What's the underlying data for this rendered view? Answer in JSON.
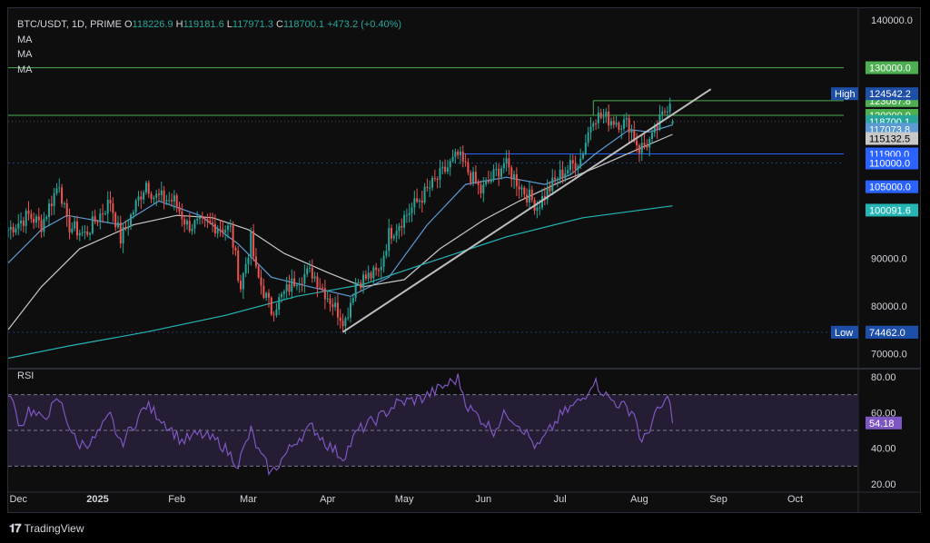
{
  "header": {
    "symbol": "BTC/USDT, 1D, PRIME",
    "open_label": "O",
    "open": "118226.9",
    "high_label": "H",
    "high": "119181.6",
    "low_label": "L",
    "low": "117971.3",
    "close_label": "C",
    "close": "118700.1",
    "change": "+473.2 (+0.40%)",
    "ma_labels": [
      "MA",
      "MA",
      "MA"
    ]
  },
  "footer": {
    "brand": "TradingView"
  },
  "colors": {
    "up": "#26a69a",
    "down": "#ef5350",
    "ma_fast": "#5b9bd5",
    "ma_mid": "#c8c8c8",
    "ma_slow": "#26b5b5",
    "rsi": "#7e57c2",
    "resistance": "#4caf50",
    "support": "#2962ff",
    "trendline": "#bdbdbd"
  },
  "chart_data": [
    {
      "type": "candlestick",
      "title": "BTC/USDT, 1D, PRIME",
      "x_ticks": [
        "Dec",
        "2025",
        "Feb",
        "Mar",
        "Apr",
        "May",
        "Jun",
        "Jul",
        "Aug",
        "Sep",
        "Oct"
      ],
      "y_ticks": [
        "140000.0",
        "90000.0",
        "80000.0",
        "70000.0"
      ],
      "ylim": [
        67000,
        142500
      ],
      "ohlc_last": {
        "open": 118226.9,
        "high": 119181.6,
        "low": 117971.3,
        "close": 118700.1
      },
      "close_path": [
        [
          "2024-11-27",
          96000
        ],
        [
          "2024-12-05",
          99000
        ],
        [
          "2024-12-10",
          97000
        ],
        [
          "2024-12-17",
          106000
        ],
        [
          "2024-12-20",
          97000
        ],
        [
          "2024-12-27",
          95000
        ],
        [
          "2025-01-06",
          102000
        ],
        [
          "2025-01-10",
          94000
        ],
        [
          "2025-01-20",
          106000
        ],
        [
          "2025-01-23",
          103000
        ],
        [
          "2025-01-31",
          102000
        ],
        [
          "2025-02-05",
          97000
        ],
        [
          "2025-02-15",
          97000
        ],
        [
          "2025-02-22",
          96000
        ],
        [
          "2025-02-26",
          84000
        ],
        [
          "2025-03-02",
          94000
        ],
        [
          "2025-03-04",
          87000
        ],
        [
          "2025-03-10",
          79000
        ],
        [
          "2025-03-20",
          86000
        ],
        [
          "2025-03-26",
          87000
        ],
        [
          "2025-04-06",
          78000
        ],
        [
          "2025-04-08",
          77000
        ],
        [
          "2025-04-12",
          85000
        ],
        [
          "2025-04-21",
          87000
        ],
        [
          "2025-04-25",
          95000
        ],
        [
          "2025-05-08",
          103000
        ],
        [
          "2025-05-22",
          111500
        ],
        [
          "2025-05-31",
          104000
        ],
        [
          "2025-06-09",
          110000
        ],
        [
          "2025-06-17",
          104000
        ],
        [
          "2025-06-22",
          101000
        ],
        [
          "2025-06-30",
          107000
        ],
        [
          "2025-07-09",
          111000
        ],
        [
          "2025-07-14",
          120000
        ],
        [
          "2025-07-22",
          119000
        ],
        [
          "2025-07-28",
          118000
        ],
        [
          "2025-08-01",
          113000
        ],
        [
          "2025-08-06",
          115000
        ],
        [
          "2025-08-11",
          121000
        ],
        [
          "2025-08-13",
          123500
        ],
        [
          "2025-08-14",
          118700
        ]
      ],
      "moving_averages": [
        {
          "name": "MA",
          "color": "#5b9bd5",
          "points": [
            [
              "2024-11-27",
              89000
            ],
            [
              "2024-12-10",
              96000
            ],
            [
              "2024-12-20",
              99000
            ],
            [
              "2025-01-10",
              97000
            ],
            [
              "2025-01-25",
              102000
            ],
            [
              "2025-02-10",
              99000
            ],
            [
              "2025-02-25",
              93000
            ],
            [
              "2025-03-10",
              86000
            ],
            [
              "2025-03-25",
              84000
            ],
            [
              "2025-04-10",
              82000
            ],
            [
              "2025-04-25",
              86000
            ],
            [
              "2025-05-10",
              97000
            ],
            [
              "2025-05-25",
              105500
            ],
            [
              "2025-06-10",
              107000
            ],
            [
              "2025-06-25",
              105500
            ],
            [
              "2025-07-05",
              107500
            ],
            [
              "2025-07-15",
              112000
            ],
            [
              "2025-07-28",
              117000
            ],
            [
              "2025-08-05",
              116500
            ],
            [
              "2025-08-14",
              118000
            ]
          ]
        },
        {
          "name": "MA",
          "color": "#c8c8c8",
          "points": [
            [
              "2024-11-27",
              75000
            ],
            [
              "2024-12-10",
              84000
            ],
            [
              "2024-12-25",
              92000
            ],
            [
              "2025-01-15",
              97000
            ],
            [
              "2025-02-01",
              99000
            ],
            [
              "2025-02-15",
              98500
            ],
            [
              "2025-03-01",
              96000
            ],
            [
              "2025-03-15",
              91000
            ],
            [
              "2025-04-01",
              87000
            ],
            [
              "2025-04-15",
              84000
            ],
            [
              "2025-05-01",
              85500
            ],
            [
              "2025-05-15",
              92000
            ],
            [
              "2025-06-01",
              98000
            ],
            [
              "2025-06-15",
              102000
            ],
            [
              "2025-07-01",
              106000
            ],
            [
              "2025-07-15",
              109000
            ],
            [
              "2025-08-01",
              113000
            ],
            [
              "2025-08-14",
              116000
            ]
          ]
        },
        {
          "name": "MA",
          "color": "#26b5b5",
          "points": [
            [
              "2024-11-27",
              69000
            ],
            [
              "2024-12-20",
              71500
            ],
            [
              "2025-01-20",
              74500
            ],
            [
              "2025-02-20",
              78000
            ],
            [
              "2025-03-20",
              82000
            ],
            [
              "2025-04-15",
              84500
            ],
            [
              "2025-05-10",
              89000
            ],
            [
              "2025-06-10",
              94500
            ],
            [
              "2025-07-10",
              98500
            ],
            [
              "2025-08-14",
              101000
            ]
          ]
        }
      ],
      "levels": [
        {
          "label": "130000.0",
          "value": 130000,
          "style": "green-solid",
          "x_start": "2024-11-27",
          "x_end": "2025-10-20",
          "tag_color": "#4caf50"
        },
        {
          "label": "123087.8",
          "value": 123087.8,
          "style": "green-solid",
          "x_start": "2025-07-14",
          "x_end": "2025-10-20",
          "tag_color": "#4caf50"
        },
        {
          "label": "120000.0",
          "value": 120000,
          "style": "green-solid",
          "x_start": "2024-11-27",
          "x_end": "2025-10-20",
          "tag_color": "#4caf50"
        },
        {
          "label": "118700.1",
          "value": 118700.1,
          "style": "price-dotted",
          "x_start": "2024-11-27",
          "x_end": "2025-10-20",
          "tag_color": "#26a69a"
        },
        {
          "label": "117073.8",
          "value": 117073.8,
          "style": "ma-tag",
          "tag_color": "#5b9bd5"
        },
        {
          "label": "115132.5",
          "value": 115132.5,
          "style": "ma-tag",
          "tag_color": "#c8c8c8"
        },
        {
          "label": "111900.0",
          "value": 111900,
          "style": "blue-solid",
          "x_start": "2025-05-24",
          "x_end": "2025-10-20",
          "tag_color": "#2962ff"
        },
        {
          "label": "110000.0",
          "value": 110000,
          "style": "blue-dotted",
          "x_start": "2024-11-27",
          "x_end": "2025-10-20",
          "tag_color": "#2962ff"
        },
        {
          "label": "105000.0",
          "value": 105000,
          "style": "blue-tag",
          "tag_color": "#2962ff"
        },
        {
          "label": "100091.6",
          "value": 100091.6,
          "style": "ma-tag",
          "tag_color": "#26b5b5"
        },
        {
          "label": "74462.0",
          "value": 74462,
          "style": "blue-dotted",
          "x_start": "2024-11-27",
          "x_end": "2025-10-20",
          "tag_color": "#1e4fa8"
        }
      ],
      "range_markers": [
        {
          "label": "High",
          "value": 124542.2,
          "value_label": "124542.2"
        },
        {
          "label": "Low",
          "value": 74462.0,
          "value_label": "74462.0"
        }
      ],
      "trendline": {
        "from": [
          "2025-04-07",
          74500
        ],
        "to": [
          "2025-08-29",
          125500
        ]
      }
    },
    {
      "type": "line",
      "title": "RSI",
      "y_ticks": [
        "80.00",
        "60.00",
        "40.00",
        "20.00"
      ],
      "ylim": [
        17,
        83
      ],
      "bands": [
        70,
        50,
        30
      ],
      "current": 54.18,
      "current_label": "54.18",
      "series": [
        {
          "name": "RSI",
          "color": "#7e57c2",
          "points": [
            [
              "2024-11-27",
              72
            ],
            [
              "2024-12-02",
              52
            ],
            [
              "2024-12-05",
              62
            ],
            [
              "2024-12-10",
              56
            ],
            [
              "2024-12-17",
              67
            ],
            [
              "2024-12-24",
              42
            ],
            [
              "2024-12-30",
              44
            ],
            [
              "2025-01-06",
              58
            ],
            [
              "2025-01-10",
              42
            ],
            [
              "2025-01-20",
              64
            ],
            [
              "2025-01-25",
              58
            ],
            [
              "2025-02-03",
              44
            ],
            [
              "2025-02-10",
              48
            ],
            [
              "2025-02-18",
              43
            ],
            [
              "2025-02-25",
              31
            ],
            [
              "2025-03-02",
              50
            ],
            [
              "2025-03-05",
              38
            ],
            [
              "2025-03-10",
              26
            ],
            [
              "2025-03-20",
              45
            ],
            [
              "2025-03-26",
              52
            ],
            [
              "2025-04-01",
              42
            ],
            [
              "2025-04-07",
              35
            ],
            [
              "2025-04-13",
              50
            ],
            [
              "2025-04-22",
              58
            ],
            [
              "2025-04-28",
              65
            ],
            [
              "2025-05-08",
              68
            ],
            [
              "2025-05-22",
              79
            ],
            [
              "2025-05-26",
              63
            ],
            [
              "2025-06-05",
              50
            ],
            [
              "2025-06-10",
              60
            ],
            [
              "2025-06-16",
              52
            ],
            [
              "2025-06-22",
              40
            ],
            [
              "2025-07-01",
              58
            ],
            [
              "2025-07-10",
              68
            ],
            [
              "2025-07-14",
              78
            ],
            [
              "2025-07-20",
              68
            ],
            [
              "2025-07-30",
              60
            ],
            [
              "2025-08-02",
              42
            ],
            [
              "2025-08-07",
              58
            ],
            [
              "2025-08-13",
              69
            ],
            [
              "2025-08-14",
              54
            ]
          ]
        }
      ]
    }
  ]
}
